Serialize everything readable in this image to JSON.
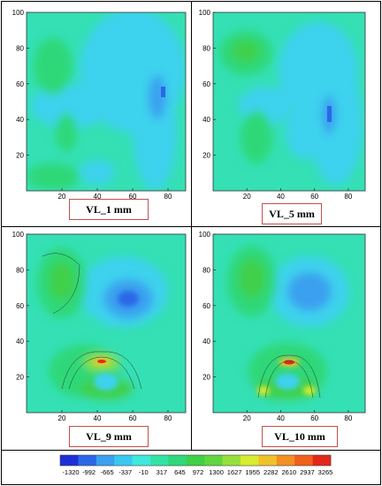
{
  "panels": [
    {
      "label": "VL_1 mm",
      "x_ticks": [
        "20",
        "40",
        "60",
        "80"
      ],
      "y_ticks": [
        "20",
        "40",
        "60",
        "80",
        "100"
      ]
    },
    {
      "label": "VL_5 mm",
      "x_ticks": [
        "20",
        "40",
        "60",
        "80"
      ],
      "y_ticks": [
        "20",
        "40",
        "60",
        "80",
        "100"
      ]
    },
    {
      "label": "VL_9 mm",
      "x_ticks": [
        "20",
        "40",
        "60",
        "80"
      ],
      "y_ticks": [
        "20",
        "40",
        "60",
        "80",
        "100"
      ]
    },
    {
      "label": "VL_10 mm",
      "x_ticks": [
        "20",
        "40",
        "60",
        "80"
      ],
      "y_ticks": [
        "20",
        "40",
        "60",
        "80",
        "100"
      ]
    }
  ],
  "chart_data": {
    "type": "heatmap",
    "xlim": [
      0,
      90
    ],
    "ylim": [
      0,
      100
    ],
    "x_ticks": [
      20,
      40,
      60,
      80
    ],
    "y_ticks": [
      20,
      40,
      60,
      80,
      100
    ],
    "colorbar": {
      "values": [
        "-1320",
        "-992",
        "-665",
        "-337",
        "-10",
        "317",
        "645",
        "972",
        "1300",
        "1627",
        "1955",
        "2282",
        "2610",
        "2937",
        "3265"
      ],
      "colors": [
        "#1f2fd6",
        "#2a68e8",
        "#3aa0ef",
        "#38c8f0",
        "#3ee8dc",
        "#30e4a6",
        "#2fd878",
        "#3fd048",
        "#62d640",
        "#96e03c",
        "#d8ec30",
        "#f0c22a",
        "#f29022",
        "#f0601c",
        "#e22818"
      ]
    }
  }
}
